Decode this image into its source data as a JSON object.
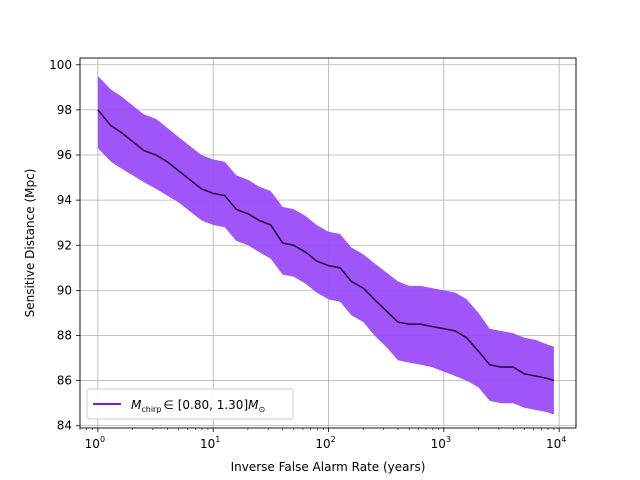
{
  "chart_data": {
    "type": "line",
    "xscale": "log",
    "xlabel": "Inverse False Alarm Rate (years)",
    "ylabel": "Sensitive Distance (Mpc)",
    "xlim": [
      0.7,
      14000
    ],
    "ylim": [
      83.9,
      100.3
    ],
    "grid": true,
    "legend": {
      "placement": "lower left",
      "label_prefix": "M",
      "label_sub": "chirp",
      "label_rest": "∈ [0.80, 1.30]",
      "label_unit": "M",
      "label_unit_sub": "⊙"
    },
    "x_ticks": [
      {
        "value": 1,
        "base": "10",
        "exp": "0"
      },
      {
        "value": 10,
        "base": "10",
        "exp": "1"
      },
      {
        "value": 100,
        "base": "10",
        "exp": "2"
      },
      {
        "value": 1000,
        "base": "10",
        "exp": "3"
      },
      {
        "value": 10000,
        "base": "10",
        "exp": "4"
      }
    ],
    "y_ticks": [
      84,
      86,
      88,
      90,
      92,
      94,
      96,
      98,
      100
    ],
    "series": [
      {
        "line_color": "#2d0a44",
        "band_color": "#9a4cf8",
        "legend_color": "#7a14f0",
        "x": [
          1.0,
          1.3,
          1.6,
          2.0,
          2.5,
          3.2,
          4.0,
          5.0,
          6.3,
          7.9,
          10,
          12.6,
          15.8,
          20,
          25,
          31.6,
          40,
          50,
          63,
          79,
          100,
          126,
          158,
          200,
          250,
          316,
          400,
          500,
          630,
          790,
          1000,
          1260,
          1580,
          2000,
          2500,
          3160,
          4000,
          5000,
          6300,
          7900,
          9000
        ],
        "y": [
          98.0,
          97.3,
          97.0,
          96.6,
          96.2,
          96.0,
          95.7,
          95.3,
          94.9,
          94.5,
          94.3,
          94.2,
          93.6,
          93.4,
          93.1,
          92.9,
          92.1,
          92.0,
          91.7,
          91.3,
          91.1,
          91.0,
          90.4,
          90.1,
          89.6,
          89.1,
          88.6,
          88.5,
          88.5,
          88.4,
          88.3,
          88.2,
          87.9,
          87.3,
          86.7,
          86.6,
          86.6,
          86.3,
          86.2,
          86.1,
          86.0
        ],
        "upper": [
          99.5,
          98.9,
          98.6,
          98.2,
          97.8,
          97.6,
          97.2,
          96.8,
          96.4,
          96.0,
          95.8,
          95.7,
          95.1,
          94.9,
          94.6,
          94.4,
          93.7,
          93.6,
          93.3,
          92.9,
          92.6,
          92.5,
          91.9,
          91.6,
          91.2,
          90.8,
          90.4,
          90.2,
          90.2,
          90.1,
          90.0,
          89.9,
          89.6,
          89.0,
          88.3,
          88.2,
          88.1,
          87.9,
          87.8,
          87.6,
          87.5
        ],
        "lower": [
          96.3,
          95.7,
          95.4,
          95.1,
          94.8,
          94.5,
          94.2,
          93.9,
          93.5,
          93.1,
          92.9,
          92.8,
          92.2,
          92.0,
          91.7,
          91.4,
          90.7,
          90.6,
          90.3,
          89.9,
          89.6,
          89.5,
          88.9,
          88.6,
          88.0,
          87.5,
          86.9,
          86.8,
          86.7,
          86.6,
          86.4,
          86.2,
          86.0,
          85.7,
          85.1,
          85.0,
          85.0,
          84.8,
          84.7,
          84.6,
          84.5
        ]
      }
    ]
  }
}
